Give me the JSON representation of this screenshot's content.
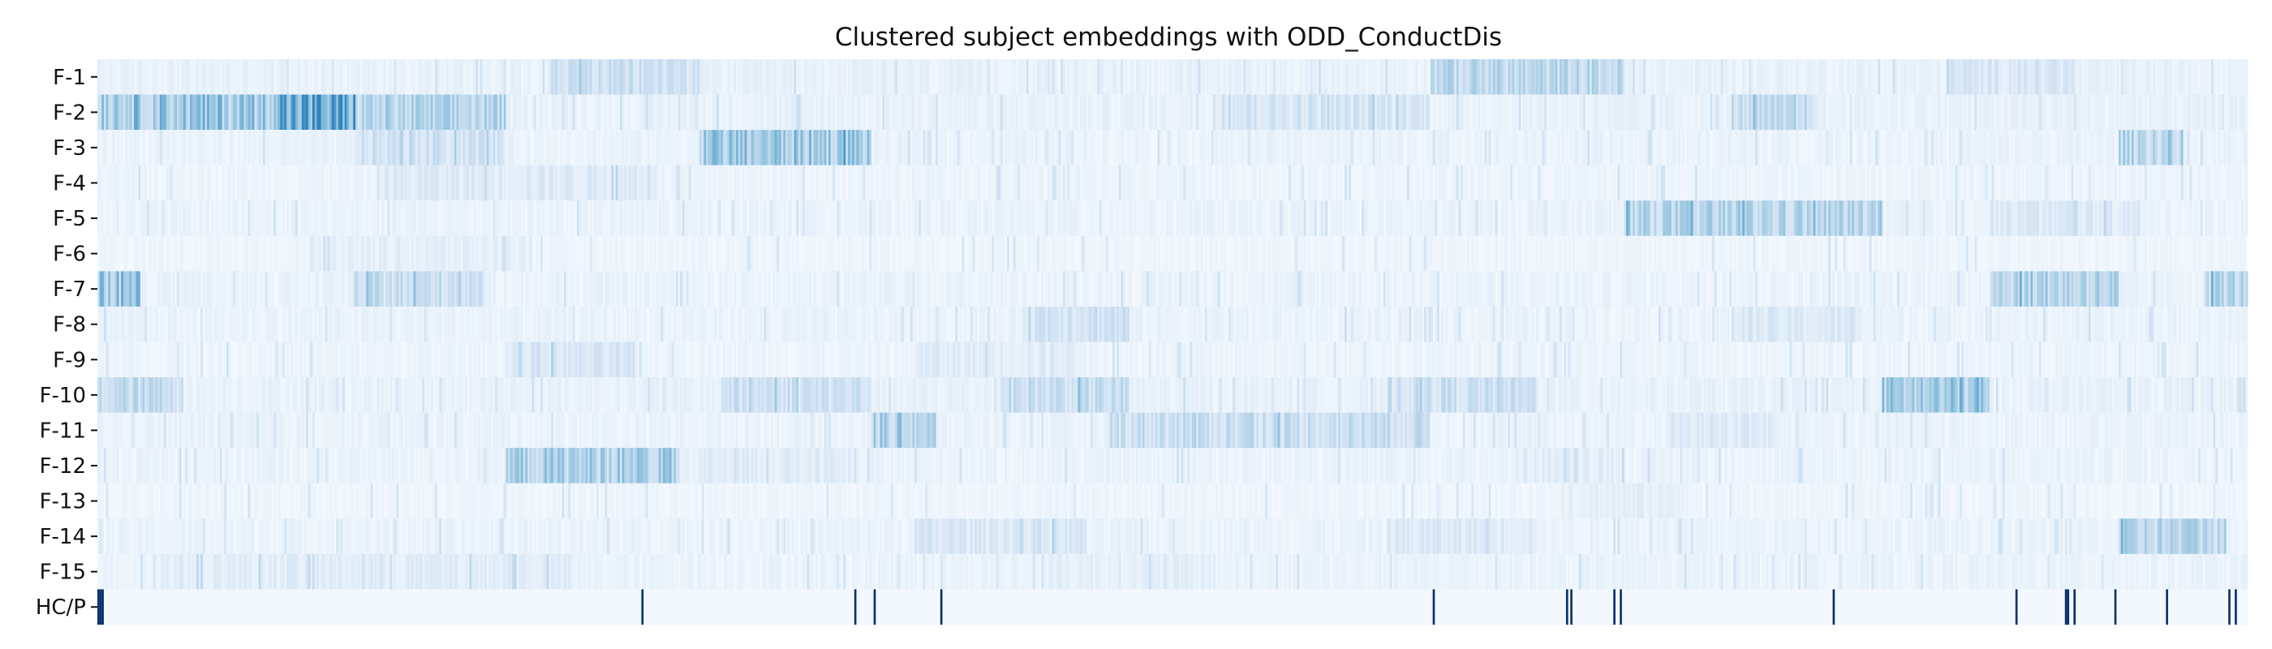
{
  "chart_data": {
    "type": "heatmap",
    "title": "Clustered subject embeddings with ODD_ConductDis",
    "xlabel": "",
    "ylabel": "",
    "rows": [
      "F-1",
      "F-2",
      "F-3",
      "F-4",
      "F-5",
      "F-6",
      "F-7",
      "F-8",
      "F-9",
      "F-10",
      "F-11",
      "F-12",
      "F-13",
      "F-14",
      "F-15",
      "HC/P"
    ],
    "n_columns": 1000,
    "colormap": "Blues",
    "value_range": [
      0,
      1
    ],
    "row_profiles": [
      {
        "row": "F-1",
        "base": 0.08,
        "segments": [
          {
            "from": 0.21,
            "to": 0.28,
            "v": 0.22
          },
          {
            "from": 0.62,
            "to": 0.71,
            "v": 0.28
          },
          {
            "from": 0.86,
            "to": 0.92,
            "v": 0.16
          }
        ]
      },
      {
        "row": "F-2",
        "base": 0.08,
        "segments": [
          {
            "from": 0.0,
            "to": 0.12,
            "v": 0.4
          },
          {
            "from": 0.08,
            "to": 0.12,
            "v": 0.55
          },
          {
            "from": 0.12,
            "to": 0.19,
            "v": 0.3
          },
          {
            "from": 0.52,
            "to": 0.62,
            "v": 0.18
          },
          {
            "from": 0.76,
            "to": 0.8,
            "v": 0.24
          }
        ]
      },
      {
        "row": "F-3",
        "base": 0.07,
        "segments": [
          {
            "from": 0.12,
            "to": 0.19,
            "v": 0.2
          },
          {
            "from": 0.28,
            "to": 0.36,
            "v": 0.38
          },
          {
            "from": 0.94,
            "to": 0.97,
            "v": 0.3
          }
        ]
      },
      {
        "row": "F-4",
        "base": 0.06,
        "segments": [
          {
            "from": 0.13,
            "to": 0.26,
            "v": 0.14
          }
        ]
      },
      {
        "row": "F-5",
        "base": 0.07,
        "segments": [
          {
            "from": 0.71,
            "to": 0.83,
            "v": 0.3
          },
          {
            "from": 0.88,
            "to": 0.95,
            "v": 0.14
          }
        ]
      },
      {
        "row": "F-6",
        "base": 0.05,
        "segments": [
          {
            "from": 0.1,
            "to": 0.2,
            "v": 0.1
          }
        ]
      },
      {
        "row": "F-7",
        "base": 0.07,
        "segments": [
          {
            "from": 0.0,
            "to": 0.02,
            "v": 0.4
          },
          {
            "from": 0.12,
            "to": 0.18,
            "v": 0.24
          },
          {
            "from": 0.88,
            "to": 0.94,
            "v": 0.32
          },
          {
            "from": 0.98,
            "to": 1.0,
            "v": 0.3
          }
        ]
      },
      {
        "row": "F-8",
        "base": 0.07,
        "segments": [
          {
            "from": 0.43,
            "to": 0.48,
            "v": 0.22
          },
          {
            "from": 0.76,
            "to": 0.82,
            "v": 0.14
          }
        ]
      },
      {
        "row": "F-9",
        "base": 0.06,
        "segments": [
          {
            "from": 0.19,
            "to": 0.25,
            "v": 0.16
          },
          {
            "from": 0.38,
            "to": 0.46,
            "v": 0.12
          }
        ]
      },
      {
        "row": "F-10",
        "base": 0.08,
        "segments": [
          {
            "from": 0.0,
            "to": 0.04,
            "v": 0.26
          },
          {
            "from": 0.29,
            "to": 0.36,
            "v": 0.22
          },
          {
            "from": 0.42,
            "to": 0.48,
            "v": 0.24
          },
          {
            "from": 0.6,
            "to": 0.67,
            "v": 0.22
          },
          {
            "from": 0.83,
            "to": 0.88,
            "v": 0.36
          }
        ]
      },
      {
        "row": "F-11",
        "base": 0.07,
        "segments": [
          {
            "from": 0.36,
            "to": 0.39,
            "v": 0.34
          },
          {
            "from": 0.47,
            "to": 0.62,
            "v": 0.24
          },
          {
            "from": 0.73,
            "to": 0.78,
            "v": 0.14
          }
        ]
      },
      {
        "row": "F-12",
        "base": 0.07,
        "segments": [
          {
            "from": 0.19,
            "to": 0.27,
            "v": 0.34
          },
          {
            "from": 0.28,
            "to": 0.35,
            "v": 0.12
          },
          {
            "from": 0.66,
            "to": 0.71,
            "v": 0.12
          }
        ]
      },
      {
        "row": "F-13",
        "base": 0.05,
        "segments": [
          {
            "from": 0.68,
            "to": 0.74,
            "v": 0.1
          }
        ]
      },
      {
        "row": "F-14",
        "base": 0.07,
        "segments": [
          {
            "from": 0.38,
            "to": 0.46,
            "v": 0.16
          },
          {
            "from": 0.6,
            "to": 0.67,
            "v": 0.14
          },
          {
            "from": 0.94,
            "to": 0.99,
            "v": 0.3
          }
        ]
      },
      {
        "row": "F-15",
        "base": 0.07,
        "segments": [
          {
            "from": 0.03,
            "to": 0.22,
            "v": 0.12
          },
          {
            "from": 0.44,
            "to": 0.52,
            "v": 0.1
          }
        ]
      }
    ],
    "hcp_marked_columns": [
      0,
      1,
      2,
      253,
      352,
      361,
      392,
      621,
      683,
      685,
      705,
      708,
      807,
      892,
      915,
      916,
      919,
      938,
      962,
      991,
      994
    ]
  }
}
